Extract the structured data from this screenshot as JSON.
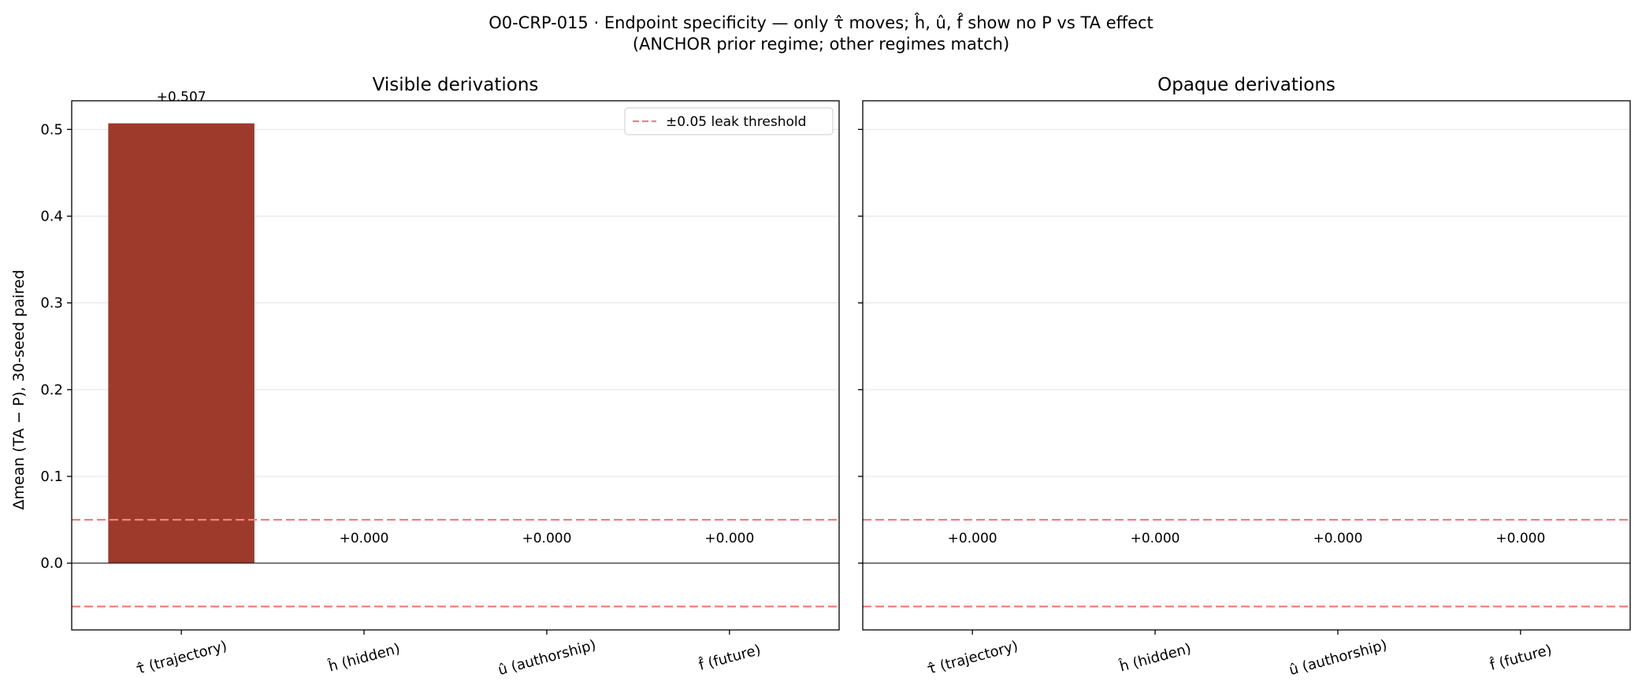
{
  "chart_data": {
    "type": "bar",
    "title": "O0-CRP-015 · Endpoint specificity — only τ̂ moves; ĥ, û, f̂ show no P vs TA effect",
    "subtitle": "(ANCHOR prior regime; other regimes match)",
    "ylabel": "Δmean (TA − P), 30-seed paired",
    "ylim": [
      -0.077,
      0.533
    ],
    "yticks": [
      0.0,
      0.1,
      0.2,
      0.3,
      0.4,
      0.5
    ],
    "ytick_labels": [
      "0.0",
      "0.1",
      "0.2",
      "0.3",
      "0.4",
      "0.5"
    ],
    "grid": "horizontal",
    "threshold": {
      "value": 0.05,
      "label": "±0.05 leak threshold",
      "color": "#f08080"
    },
    "legend_position": "top-right",
    "bar_color": "#9e3a2c",
    "panels": [
      {
        "title": "Visible derivations",
        "categories": [
          "τ̂ (trajectory)",
          "ĥ (hidden)",
          "û (authorship)",
          "f̂ (future)"
        ],
        "values": [
          0.507,
          0.0,
          0.0,
          0.0
        ],
        "value_labels": [
          "+0.507",
          "+0.000",
          "+0.000",
          "+0.000"
        ],
        "show_legend": true
      },
      {
        "title": "Opaque derivations",
        "categories": [
          "τ̂ (trajectory)",
          "ĥ (hidden)",
          "û (authorship)",
          "f̂ (future)"
        ],
        "values": [
          0.0,
          0.0,
          0.0,
          0.0
        ],
        "value_labels": [
          "+0.000",
          "+0.000",
          "+0.000",
          "+0.000"
        ],
        "show_legend": false
      }
    ]
  }
}
